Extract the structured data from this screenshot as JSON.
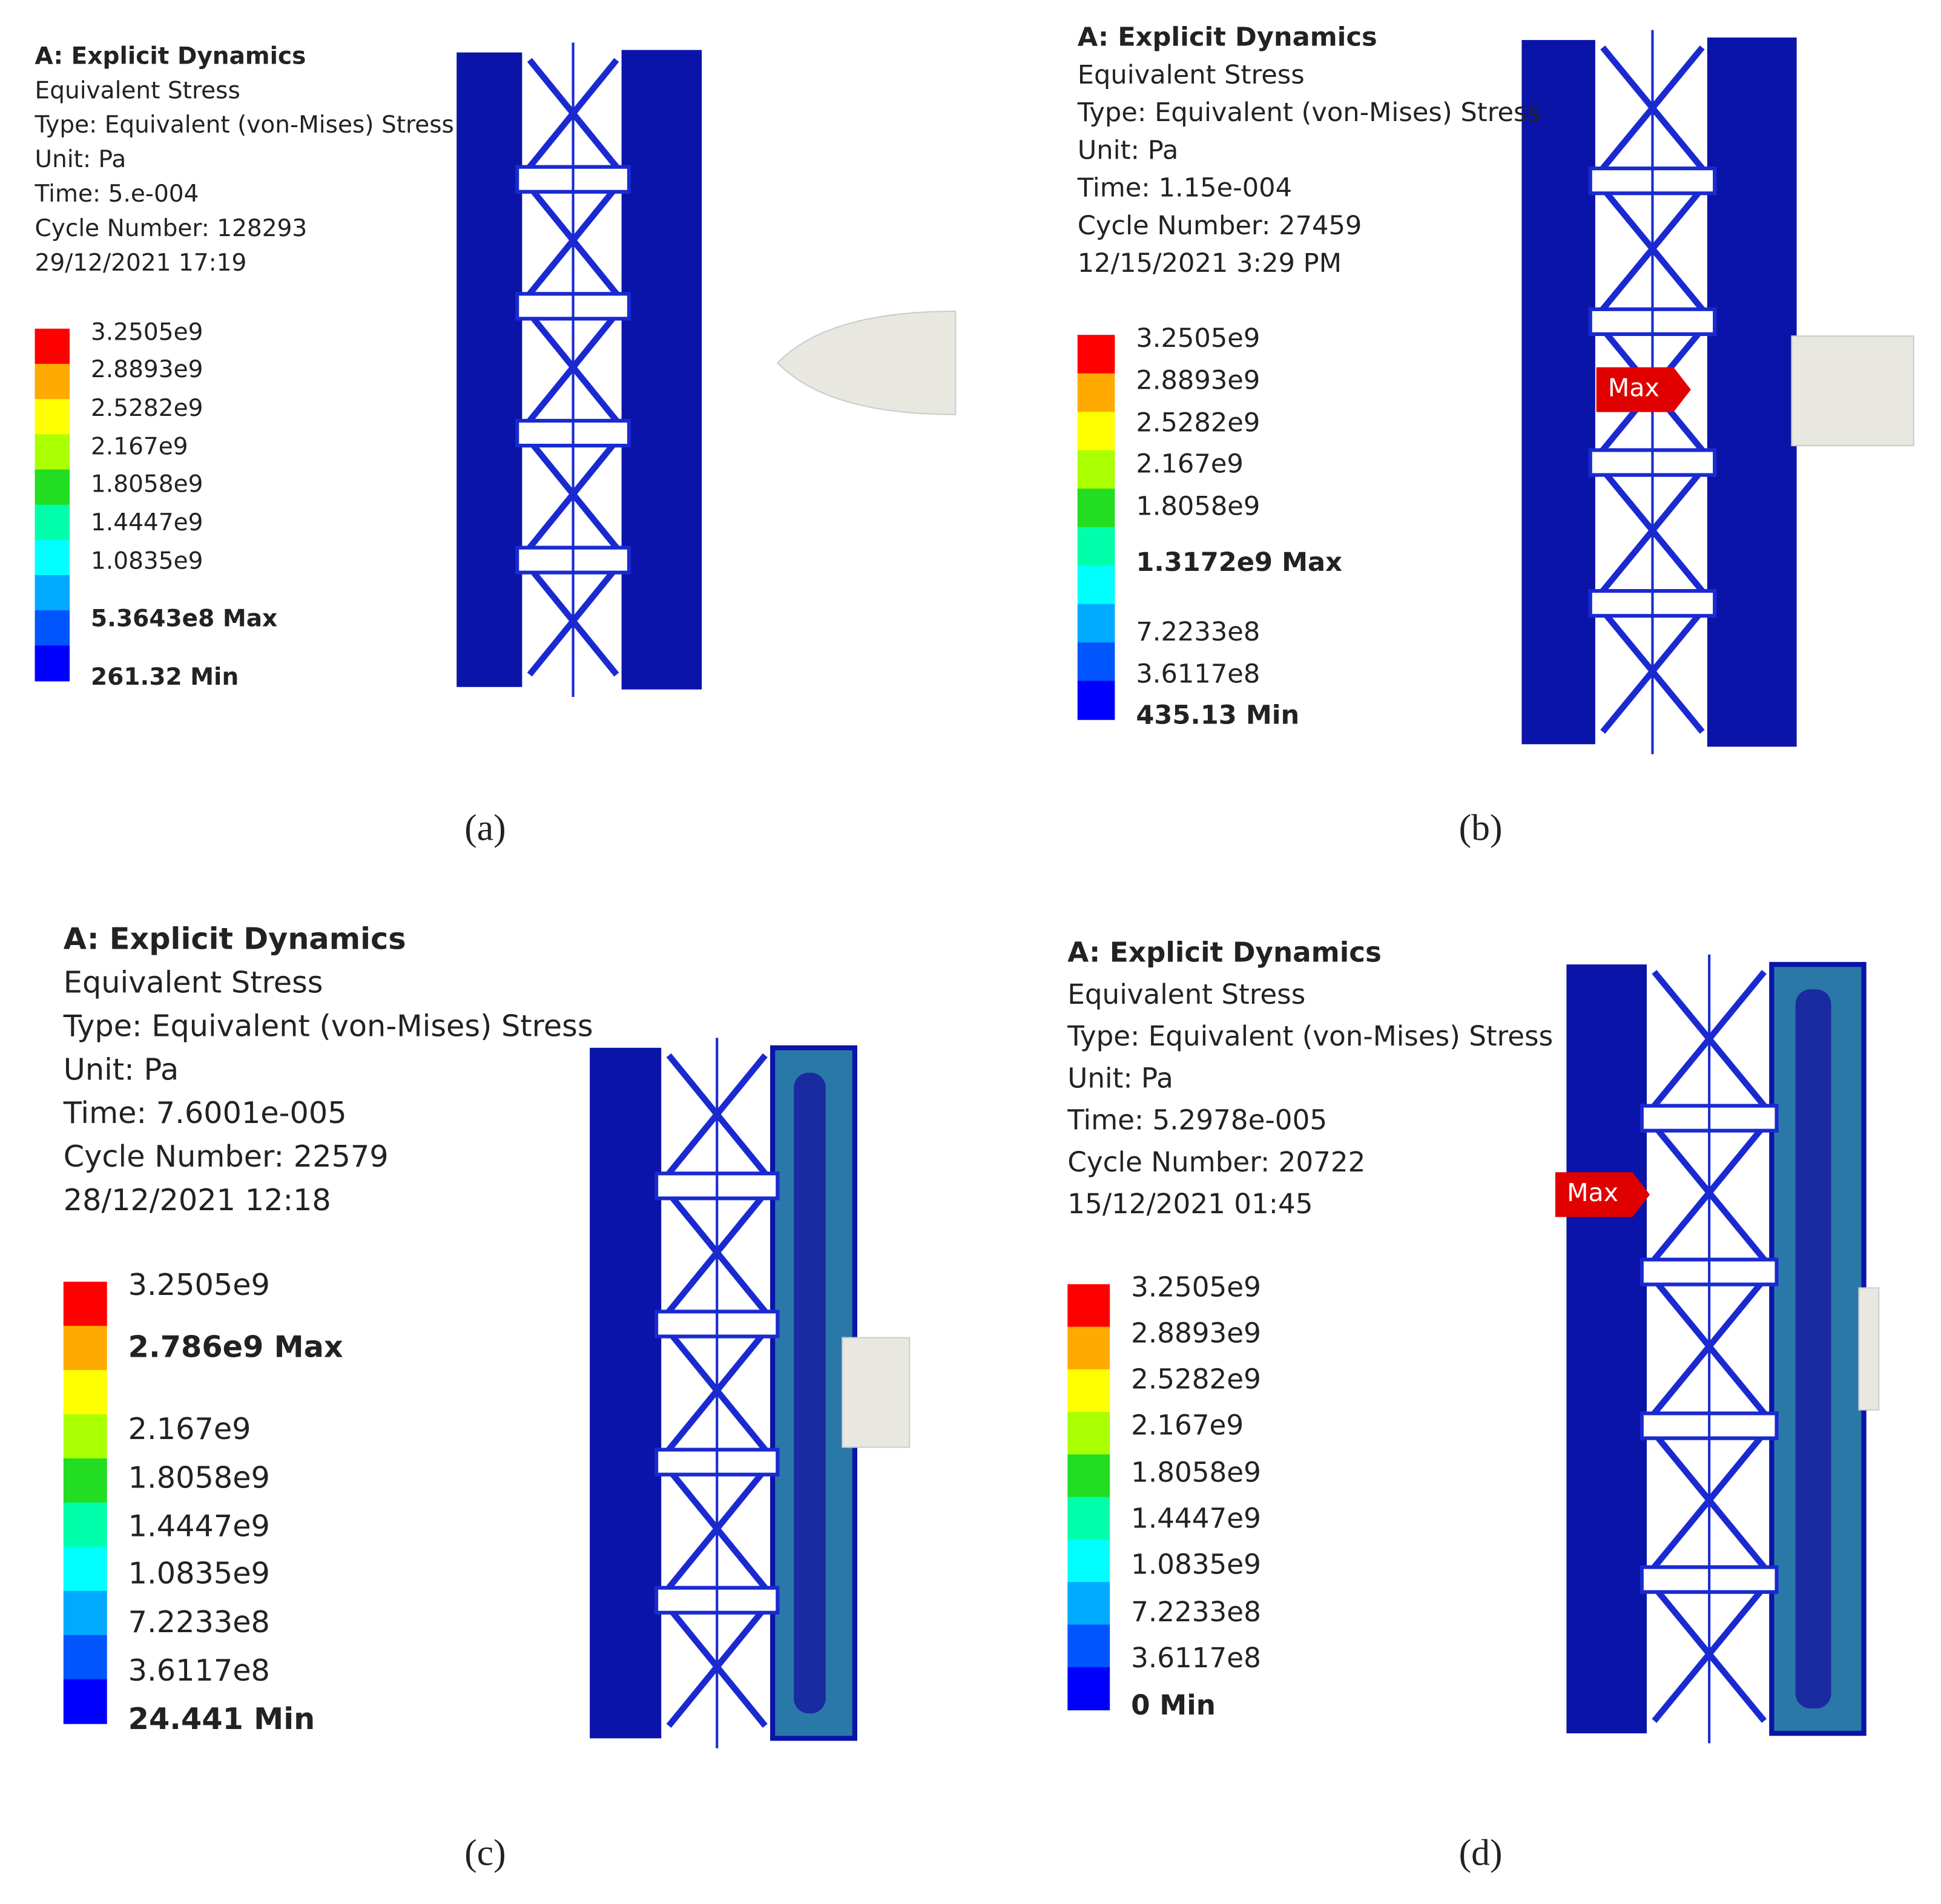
{
  "panels": [
    {
      "caption": "(a)",
      "header": [
        "A: Explicit Dynamics",
        "Equivalent Stress",
        "Type: Equivalent (von-Mises) Stress",
        "Unit: Pa",
        "Time: 5.e-004",
        "Cycle Number: 128293",
        "29/12/2021 17:19"
      ],
      "legend": [
        "3.2505e9",
        "2.8893e9",
        "2.5282e9",
        "2.167e9",
        "1.8058e9",
        "1.4447e9",
        "1.0835e9",
        "5.3643e8 Max",
        "261.32 Min"
      ]
    },
    {
      "caption": "(b)",
      "header": [
        "A: Explicit Dynamics",
        "Equivalent Stress",
        "Type: Equivalent (von-Mises) Stress",
        "Unit: Pa",
        "Time: 1.15e-004",
        "Cycle Number: 27459",
        "12/15/2021 3:29 PM"
      ],
      "legend": [
        "3.2505e9",
        "2.8893e9",
        "2.5282e9",
        "2.167e9",
        "1.8058e9",
        "1.3172e9 Max",
        "7.2233e8",
        "3.6117e8",
        "435.13 Min"
      ],
      "flag": "Max"
    },
    {
      "caption": "(c)",
      "header": [
        "A: Explicit Dynamics",
        "Equivalent Stress",
        "Type: Equivalent (von-Mises) Stress",
        "Unit: Pa",
        "Time: 7.6001e-005",
        "Cycle Number: 22579",
        "28/12/2021 12:18"
      ],
      "legend": [
        "3.2505e9",
        "2.786e9 Max",
        "2.167e9",
        "1.8058e9",
        "1.4447e9",
        "1.0835e9",
        "7.2233e8",
        "3.6117e8",
        "24.441 Min"
      ]
    },
    {
      "caption": "(d)",
      "header": [
        "A: Explicit Dynamics",
        "Equivalent Stress",
        "Type: Equivalent (von-Mises) Stress",
        "Unit: Pa",
        "Time: 5.2978e-005",
        "Cycle Number: 20722",
        "15/12/2021 01:45"
      ],
      "legend": [
        "3.2505e9",
        "2.8893e9",
        "2.5282e9",
        "2.167e9",
        "1.8058e9",
        "1.4447e9",
        "1.0835e9",
        "7.2233e8",
        "3.6117e8",
        "0 Min"
      ],
      "flag": "Max"
    }
  ]
}
